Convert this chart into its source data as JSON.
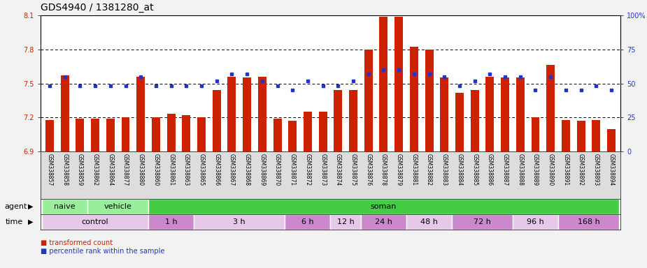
{
  "title": "GDS4940 / 1381280_at",
  "samples": [
    "GSM338857",
    "GSM338858",
    "GSM338859",
    "GSM338862",
    "GSM338864",
    "GSM338877",
    "GSM338880",
    "GSM338860",
    "GSM338861",
    "GSM338863",
    "GSM338865",
    "GSM338866",
    "GSM338867",
    "GSM338868",
    "GSM338869",
    "GSM338870",
    "GSM338871",
    "GSM338872",
    "GSM338873",
    "GSM338874",
    "GSM338875",
    "GSM338876",
    "GSM338878",
    "GSM338879",
    "GSM338881",
    "GSM338882",
    "GSM338883",
    "GSM338884",
    "GSM338885",
    "GSM338886",
    "GSM338887",
    "GSM338888",
    "GSM338889",
    "GSM338890",
    "GSM338891",
    "GSM338892",
    "GSM338893",
    "GSM338894"
  ],
  "red_values": [
    7.18,
    7.57,
    7.19,
    7.19,
    7.19,
    7.2,
    7.56,
    7.2,
    7.23,
    7.22,
    7.2,
    7.44,
    7.56,
    7.55,
    7.56,
    7.19,
    7.17,
    7.25,
    7.25,
    7.44,
    7.44,
    7.8,
    8.09,
    8.09,
    7.82,
    7.8,
    7.55,
    7.42,
    7.44,
    7.56,
    7.55,
    7.55,
    7.2,
    7.66,
    7.18,
    7.17,
    7.18,
    7.1
  ],
  "blue_values": [
    48,
    55,
    48,
    48,
    48,
    48,
    55,
    48,
    48,
    48,
    48,
    52,
    57,
    57,
    52,
    48,
    45,
    52,
    48,
    48,
    52,
    57,
    60,
    60,
    57,
    57,
    55,
    48,
    52,
    57,
    55,
    55,
    45,
    55,
    45,
    45,
    48,
    45
  ],
  "ylim_left": [
    6.9,
    8.1
  ],
  "ylim_right": [
    0,
    100
  ],
  "yticks_left": [
    6.9,
    7.2,
    7.5,
    7.8,
    8.1
  ],
  "yticks_right": [
    0,
    25,
    50,
    75,
    100
  ],
  "hlines": [
    7.2,
    7.5,
    7.8
  ],
  "bar_color": "#cc2200",
  "dot_color": "#2233cc",
  "agent_groups": [
    {
      "label": "naive",
      "start": 0,
      "end": 3,
      "color": "#99ee99"
    },
    {
      "label": "vehicle",
      "start": 3,
      "end": 7,
      "color": "#99ee99"
    },
    {
      "label": "soman",
      "start": 7,
      "end": 38,
      "color": "#44cc44"
    }
  ],
  "time_groups": [
    {
      "label": "control",
      "start": 0,
      "end": 7,
      "color": "#e8c8e8"
    },
    {
      "label": "1 h",
      "start": 7,
      "end": 10,
      "color": "#cc88cc"
    },
    {
      "label": "3 h",
      "start": 10,
      "end": 16,
      "color": "#e8c8e8"
    },
    {
      "label": "6 h",
      "start": 16,
      "end": 19,
      "color": "#cc88cc"
    },
    {
      "label": "12 h",
      "start": 19,
      "end": 21,
      "color": "#e8c8e8"
    },
    {
      "label": "24 h",
      "start": 21,
      "end": 24,
      "color": "#cc88cc"
    },
    {
      "label": "48 h",
      "start": 24,
      "end": 27,
      "color": "#e8c8e8"
    },
    {
      "label": "72 h",
      "start": 27,
      "end": 31,
      "color": "#cc88cc"
    },
    {
      "label": "96 h",
      "start": 31,
      "end": 34,
      "color": "#e8c8e8"
    },
    {
      "label": "168 h",
      "start": 34,
      "end": 38,
      "color": "#cc88cc"
    }
  ],
  "bg_color": "#f2f2f2",
  "plot_bg": "#ffffff",
  "xlabel_bg": "#dddddd",
  "title_fontsize": 10,
  "tick_fontsize": 7,
  "row_fontsize": 8,
  "sample_fontsize": 5.5,
  "legend_red_label": "transformed count",
  "legend_blue_label": "percentile rank within the sample",
  "bar_width": 0.55
}
